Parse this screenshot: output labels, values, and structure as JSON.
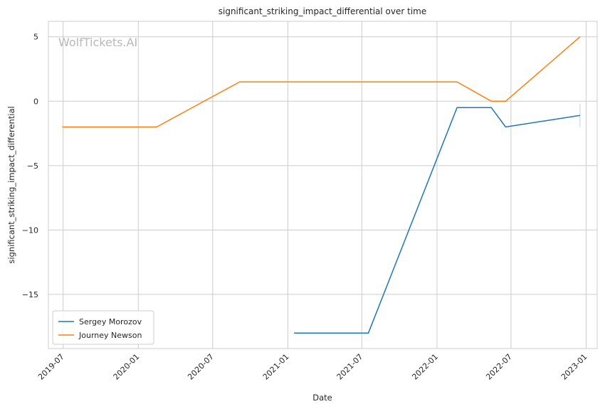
{
  "chart_data": {
    "type": "line",
    "title": "significant_striking_impact_differential over time",
    "xlabel": "Date",
    "ylabel": "significant_striking_impact_differential",
    "watermark": "WolfTickets.AI",
    "xlim": [
      "2019-05-26",
      "2023-01-28"
    ],
    "ylim": [
      -19.2,
      6.2
    ],
    "x_ticks": [
      {
        "date": "2019-07-01",
        "label": "2019-07"
      },
      {
        "date": "2020-01-01",
        "label": "2020-01"
      },
      {
        "date": "2020-07-01",
        "label": "2020-07"
      },
      {
        "date": "2021-01-01",
        "label": "2021-01"
      },
      {
        "date": "2021-07-01",
        "label": "2021-07"
      },
      {
        "date": "2022-01-01",
        "label": "2022-01"
      },
      {
        "date": "2022-07-01",
        "label": "2022-07"
      },
      {
        "date": "2023-01-01",
        "label": "2023-01"
      }
    ],
    "y_ticks": [
      {
        "value": 5,
        "label": "5"
      },
      {
        "value": 0,
        "label": "0"
      },
      {
        "value": -5,
        "label": "−5"
      },
      {
        "value": -10,
        "label": "−10"
      },
      {
        "value": -15,
        "label": "−15"
      }
    ],
    "grid": true,
    "legend_position": "lower-left",
    "series": [
      {
        "name": "Sergey Morozov",
        "color": "#1f77b4",
        "points": [
          {
            "x": "2021-01-16",
            "y": -18
          },
          {
            "x": "2021-07-17",
            "y": -18
          },
          {
            "x": "2022-02-19",
            "y": -0.5
          },
          {
            "x": "2022-05-14",
            "y": -0.5
          },
          {
            "x": "2022-06-18",
            "y": -2
          },
          {
            "x": "2022-12-17",
            "y": -1.1
          }
        ],
        "error_bar": {
          "x": "2022-12-17",
          "low": -2,
          "high": -0.2
        }
      },
      {
        "name": "Journey Newson",
        "color": "#ff7f0e",
        "points": [
          {
            "x": "2019-06-29",
            "y": -2
          },
          {
            "x": "2020-02-15",
            "y": -2
          },
          {
            "x": "2020-09-05",
            "y": 1.5
          },
          {
            "x": "2022-02-19",
            "y": 1.5
          },
          {
            "x": "2022-05-14",
            "y": 0
          },
          {
            "x": "2022-06-18",
            "y": 0
          },
          {
            "x": "2022-12-17",
            "y": 5
          }
        ]
      }
    ]
  }
}
